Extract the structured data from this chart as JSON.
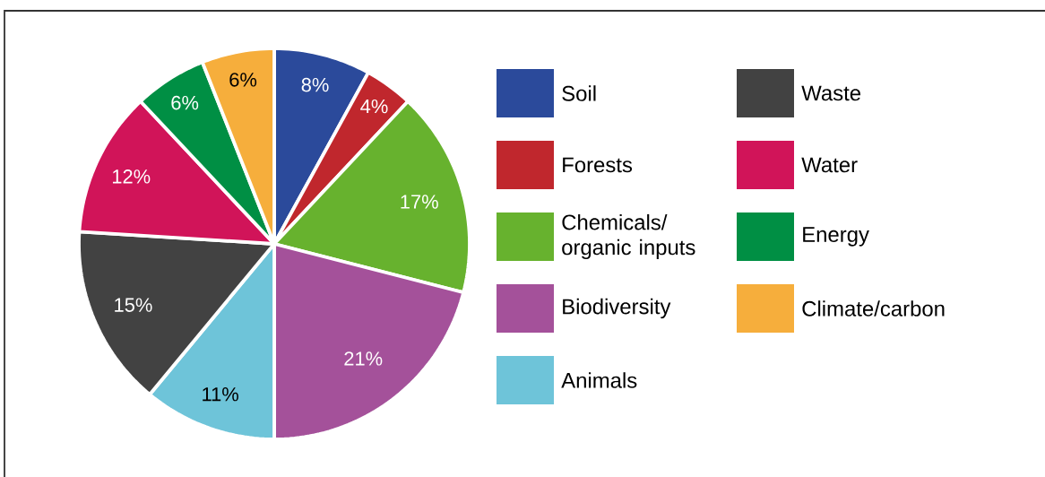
{
  "chart_data": {
    "type": "pie",
    "categories": [
      "Soil",
      "Forests",
      "Chemicals/organic inputs",
      "Biodiversity",
      "Animals",
      "Waste",
      "Water",
      "Energy",
      "Climate/carbon"
    ],
    "values": [
      8,
      4,
      17,
      21,
      11,
      15,
      12,
      6,
      6
    ],
    "colors": [
      "#2b4a9b",
      "#c0272d",
      "#67b22e",
      "#a4519a",
      "#6ec4d9",
      "#424242",
      "#d11459",
      "#008f44",
      "#f6ae3c"
    ],
    "value_labels": [
      "8%",
      "4%",
      "17%",
      "21%",
      "11%",
      "15%",
      "12%",
      "6%",
      "6%"
    ],
    "legend": "right"
  }
}
